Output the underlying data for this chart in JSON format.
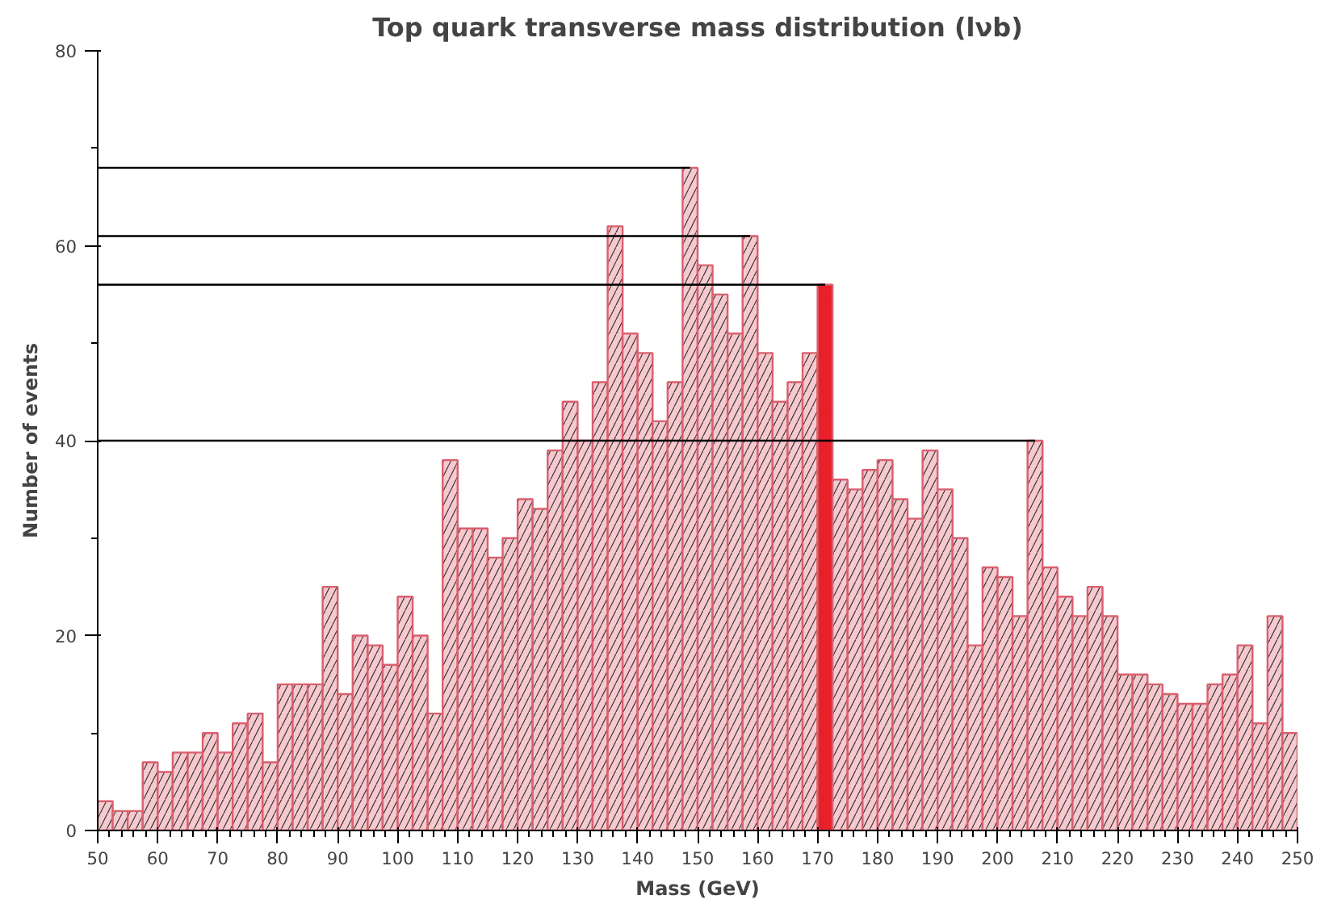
{
  "chart_data": {
    "type": "histogram",
    "title": "Top quark transverse mass distribution (lνb)",
    "xlabel": "Mass (GeV)",
    "ylabel": "Number of events",
    "bins": [
      50,
      52.5,
      55,
      57.5,
      60,
      62.5,
      65,
      67.5,
      70,
      72.5,
      75,
      77.5,
      80,
      82.5,
      85,
      87.5,
      90,
      92.5,
      95,
      97.5,
      100,
      102.5,
      105,
      107.5,
      110,
      112.5,
      115,
      117.5,
      120,
      122.5,
      125,
      127.5,
      130,
      132.5,
      135,
      137.5,
      140,
      142.5,
      145,
      147.5,
      150,
      152.5,
      155,
      157.5,
      160,
      162.5,
      165,
      167.5,
      170,
      172.5,
      175,
      177.5,
      180,
      182.5,
      185,
      187.5,
      190,
      192.5,
      195,
      197.5,
      200,
      202.5,
      205,
      207.5,
      210,
      212.5,
      215,
      217.5,
      220,
      222.5,
      225,
      227.5,
      230,
      232.5,
      235,
      237.5,
      240,
      242.5,
      245,
      247.5,
      250
    ],
    "values": [
      3,
      2,
      2,
      7,
      6,
      8,
      8,
      10,
      8,
      11,
      12,
      7,
      15,
      15,
      15,
      25,
      14,
      20,
      19,
      17,
      24,
      20,
      12,
      38,
      31,
      31,
      28,
      30,
      34,
      33,
      39,
      44,
      40,
      46,
      62,
      51,
      49,
      42,
      46,
      68,
      58,
      55,
      51,
      61,
      49,
      44,
      46,
      49,
      56,
      36,
      35,
      37,
      38,
      34,
      32,
      39,
      35,
      30,
      19,
      27,
      26,
      22,
      40,
      27,
      24,
      22,
      25,
      22,
      16,
      16,
      15,
      14,
      13,
      13,
      15,
      16,
      19,
      11,
      22,
      10
    ],
    "color": "#f6c9cf",
    "colors": [
      "#f6c9cf",
      "#f6c9cf",
      "#f6c9cf",
      "#f6c9cf",
      "#f6c9cf",
      "#f6c9cf",
      "#f6c9cf",
      "#f6c9cf",
      "#f6c9cf",
      "#f6c9cf",
      "#f6c9cf",
      "#f6c9cf",
      "#f6c9cf",
      "#f6c9cf",
      "#f6c9cf",
      "#f6c9cf",
      "#f6c9cf",
      "#f6c9cf",
      "#f6c9cf",
      "#f6c9cf",
      "#f6c9cf",
      "#f6c9cf",
      "#f6c9cf",
      "#f6c9cf",
      "#f6c9cf",
      "#f6c9cf",
      "#f6c9cf",
      "#f6c9cf",
      "#f6c9cf",
      "#f6c9cf",
      "#f6c9cf",
      "#f6c9cf",
      "#f6c9cf",
      "#f6c9cf",
      "#f6c9cf",
      "#f6c9cf",
      "#f6c9cf",
      "#f6c9cf",
      "#f6c9cf",
      "#f6c9cf",
      "#f6c9cf",
      "#f6c9cf",
      "#f6c9cf",
      "#f6c9cf",
      "#f6c9cf",
      "#f6c9cf",
      "#f6c9cf",
      "#f6c9cf",
      "#e8202a",
      "#f6c9cf",
      "#f6c9cf",
      "#f6c9cf",
      "#f6c9cf",
      "#f6c9cf",
      "#f6c9cf",
      "#f6c9cf",
      "#f6c9cf",
      "#f6c9cf",
      "#f6c9cf",
      "#f6c9cf",
      "#f6c9cf",
      "#f6c9cf",
      "#f6c9cf",
      "#f6c9cf",
      "#f6c9cf",
      "#f6c9cf",
      "#f6c9cf",
      "#f6c9cf",
      "#f6c9cf",
      "#f6c9cf",
      "#f6c9cf",
      "#f6c9cf",
      "#f6c9cf",
      "#f6c9cf",
      "#f6c9cf",
      "#f6c9cf",
      "#f6c9cf",
      "#f6c9cf",
      "#f6c9cf",
      "#f6c9cf"
    ],
    "xlim": [
      50,
      250
    ],
    "xticks": [
      50,
      60,
      70,
      80,
      90,
      100,
      110,
      120,
      130,
      140,
      150,
      160,
      170,
      180,
      190,
      200,
      210,
      220,
      230,
      240,
      250
    ],
    "ylim": [
      0,
      80
    ],
    "yticks": [
      0,
      20,
      40,
      60,
      80
    ],
    "ref_lines": [
      {
        "axis": "y",
        "value": 68,
        "color": "#000000"
      },
      {
        "axis": "y",
        "value": 61,
        "color": "#000000"
      },
      {
        "axis": "y",
        "value": 56,
        "color": "#000000"
      },
      {
        "axis": "y",
        "value": 40,
        "color": "#000000"
      }
    ],
    "grid": false
  }
}
